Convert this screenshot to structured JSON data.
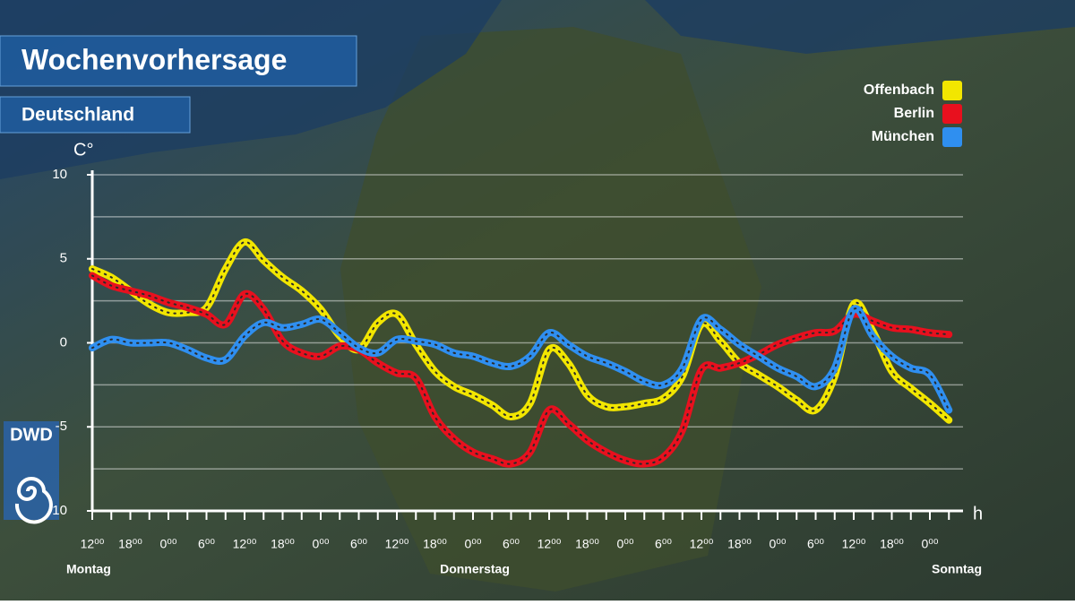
{
  "chart_data": {
    "type": "line",
    "title": "Wochenvorhersage",
    "subtitle": "Deutschland",
    "logo": "DWD",
    "y_label": "C°",
    "x_label": "h",
    "day_labels": [
      "Montag",
      "Donnerstag",
      "Sonntag"
    ],
    "categories": [
      "12⁰⁰",
      null,
      "18⁰⁰",
      null,
      "0⁰⁰",
      null,
      "6⁰⁰",
      null,
      "12⁰⁰",
      null,
      "18⁰⁰",
      null,
      "0⁰⁰",
      null,
      "6⁰⁰",
      null,
      "12⁰⁰",
      null,
      "18⁰⁰",
      null,
      "0⁰⁰",
      null,
      "6⁰⁰",
      null,
      "12⁰⁰",
      null,
      "18⁰⁰",
      null,
      "0⁰⁰",
      null,
      "6⁰⁰",
      null,
      "12⁰⁰",
      null,
      "18⁰⁰",
      null,
      "0⁰⁰",
      null,
      "6⁰⁰",
      null,
      "12⁰⁰",
      null,
      "18⁰⁰",
      null,
      "0⁰⁰",
      null
    ],
    "series": [
      {
        "name": "Offenbach",
        "color": "#f2e600",
        "values": [
          4.4,
          3.9,
          3.1,
          2.3,
          1.8,
          1.8,
          2.1,
          4.4,
          6.0,
          4.9,
          3.9,
          3.1,
          2.0,
          0.4,
          -0.4,
          1.2,
          1.7,
          -0.1,
          -1.7,
          -2.6,
          -3.1,
          -3.7,
          -4.4,
          -3.6,
          -0.4,
          -1.2,
          -3.1,
          -3.8,
          -3.8,
          -3.6,
          -3.3,
          -2.0,
          1.1,
          0.1,
          -1.2,
          -1.9,
          -2.6,
          -3.4,
          -4.0,
          -2.0,
          2.3,
          0.7,
          -1.7,
          -2.7,
          -3.6,
          -4.6
        ]
      },
      {
        "name": "Berlin",
        "color": "#e8101e",
        "values": [
          4.0,
          3.4,
          3.1,
          2.8,
          2.4,
          2.1,
          1.7,
          1.1,
          2.9,
          2.0,
          0.1,
          -0.6,
          -0.8,
          -0.2,
          -0.4,
          -1.2,
          -1.8,
          -2.1,
          -4.4,
          -5.7,
          -6.5,
          -6.9,
          -7.2,
          -6.5,
          -4.0,
          -4.8,
          -5.8,
          -6.5,
          -7.0,
          -7.2,
          -6.8,
          -5.2,
          -1.6,
          -1.5,
          -1.2,
          -0.7,
          -0.1,
          0.3,
          0.6,
          0.7,
          1.7,
          1.3,
          0.9,
          0.8,
          0.6,
          0.5
        ]
      },
      {
        "name": "München",
        "color": "#2f8ff0",
        "values": [
          -0.3,
          0.2,
          0.0,
          0.0,
          0.0,
          -0.4,
          -0.9,
          -1.0,
          0.4,
          1.2,
          0.9,
          1.1,
          1.4,
          0.6,
          -0.3,
          -0.6,
          0.2,
          0.1,
          -0.1,
          -0.6,
          -0.8,
          -1.2,
          -1.4,
          -0.8,
          0.6,
          -0.1,
          -0.8,
          -1.2,
          -1.7,
          -2.3,
          -2.5,
          -1.5,
          1.4,
          0.8,
          -0.1,
          -0.8,
          -1.5,
          -2.0,
          -2.6,
          -1.5,
          2.0,
          0.4,
          -0.8,
          -1.5,
          -1.9,
          -4.0
        ]
      }
    ],
    "ylim": [
      -10,
      10
    ],
    "yticks": [
      -10,
      -5,
      0,
      5,
      10
    ],
    "minor_yticks": [
      -7.5,
      -2.5,
      2.5,
      7.5
    ],
    "grid": true
  }
}
